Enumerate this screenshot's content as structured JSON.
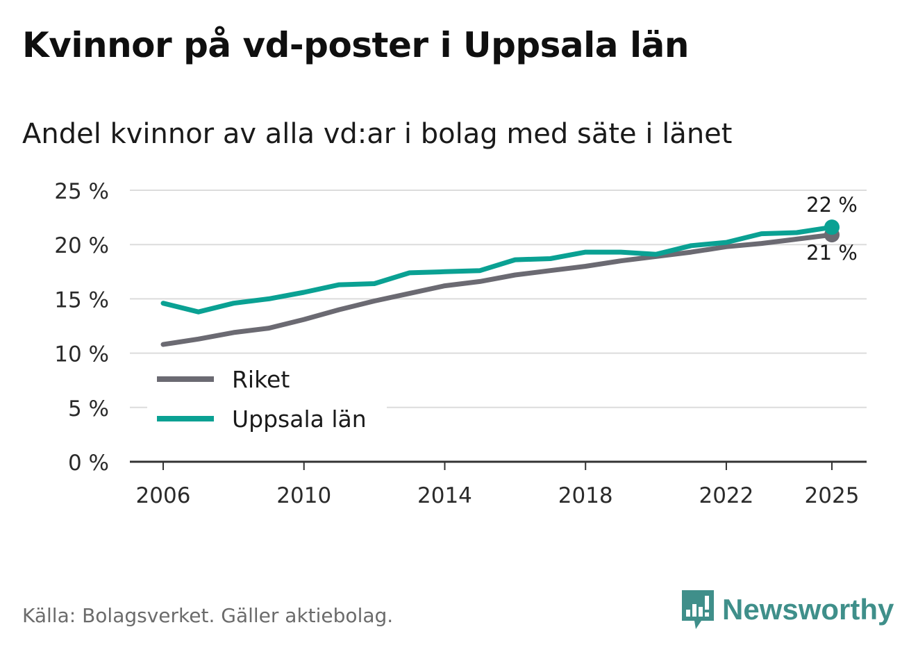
{
  "title": "Kvinnor på vd-poster i Uppsala län",
  "subtitle": "Andel kvinnor av alla vd:ar i bolag med säte i länet",
  "source": "Källa: Bolagsverket. Gäller aktiebolag.",
  "brand": {
    "name": "Newsworthy",
    "icon": "newsworthy-logo-icon",
    "color": "#3f8f8a"
  },
  "chart_data": {
    "type": "line",
    "title": "Kvinnor på vd-poster i Uppsala län",
    "subtitle": "Andel kvinnor av alla vd:ar i bolag med säte i länet",
    "xlabel": "",
    "ylabel": "",
    "ylim": [
      0,
      25
    ],
    "yticks": [
      0,
      5,
      10,
      15,
      20,
      25
    ],
    "ytick_labels": [
      "0 %",
      "5 %",
      "10 %",
      "15 %",
      "20 %",
      "25 %"
    ],
    "xlim": [
      2006,
      2025
    ],
    "xticks": [
      2006,
      2010,
      2014,
      2018,
      2022,
      2025
    ],
    "xtick_labels": [
      "2006",
      "2010",
      "2014",
      "2018",
      "2022",
      "2025"
    ],
    "grid": true,
    "legend_position": "bottom-left",
    "x": [
      2006,
      2007,
      2008,
      2009,
      2010,
      2011,
      2012,
      2013,
      2014,
      2015,
      2016,
      2017,
      2018,
      2019,
      2020,
      2021,
      2022,
      2023,
      2024,
      2025
    ],
    "series": [
      {
        "name": "Riket",
        "color": "#6b6a72",
        "values": [
          10.8,
          11.3,
          11.9,
          12.3,
          13.1,
          14.0,
          14.8,
          15.5,
          16.2,
          16.6,
          17.2,
          17.6,
          18.0,
          18.5,
          18.9,
          19.3,
          19.8,
          20.1,
          20.5,
          20.9
        ],
        "end_label": "21 %"
      },
      {
        "name": "Uppsala län",
        "color": "#0aa193",
        "values": [
          14.6,
          13.8,
          14.6,
          15.0,
          15.6,
          16.3,
          16.4,
          17.4,
          17.5,
          17.6,
          18.6,
          18.7,
          19.3,
          19.3,
          19.1,
          19.9,
          20.2,
          21.0,
          21.1,
          21.6
        ],
        "end_label": "22 %"
      }
    ]
  }
}
